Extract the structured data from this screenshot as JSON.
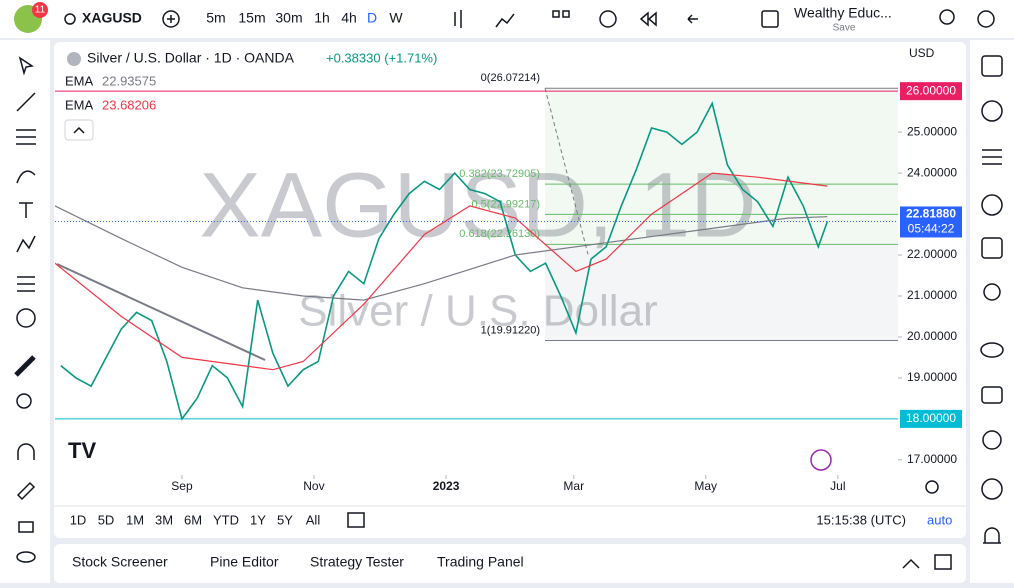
{
  "toolbar": {
    "badge": "11",
    "symbol": "XAGUSD",
    "intervals": [
      "5m",
      "15m",
      "30m",
      "1h",
      "4h",
      "D",
      "W"
    ],
    "active_interval": "D",
    "layout_name": "Wealthy Educ...",
    "save": "Save"
  },
  "legend": {
    "title": "Silver / U.S. Dollar · 1D · OANDA",
    "change": "+0.38330 (+1.71%)",
    "indicators": [
      {
        "name": "EMA",
        "value": 22.93575,
        "color": "#787b86"
      },
      {
        "name": "EMA",
        "value": 23.68206,
        "color": "#f23645"
      }
    ]
  },
  "watermark": {
    "symbol": "XAGUSD, 1D",
    "description": "Silver / U.S. Dollar"
  },
  "chart_data": {
    "type": "line",
    "currency": "USD",
    "xlim": [
      -8.38,
      47.26
    ],
    "xticks": [
      {
        "value": 0,
        "label": "Sep"
      },
      {
        "value": 8.71,
        "label": "Nov"
      },
      {
        "value": 17.43,
        "label": "2023"
      },
      {
        "value": 25.86,
        "label": "Mar"
      },
      {
        "value": 34.57,
        "label": "May"
      },
      {
        "value": 43.29,
        "label": "Jul"
      }
    ],
    "ylim": [
      16.63,
      27.2
    ],
    "yticks": [
      {
        "value": 17,
        "label": "17.00000"
      },
      {
        "value": 19,
        "label": "19.00000"
      },
      {
        "value": 20,
        "label": "20.00000"
      },
      {
        "value": 21,
        "label": "21.00000"
      },
      {
        "value": 22,
        "label": "22.00000"
      },
      {
        "value": 24,
        "label": "24.00000"
      },
      {
        "value": 25,
        "label": "25.00000"
      }
    ],
    "series": [
      {
        "name": "XAGUSD",
        "color": "#089981",
        "x": [
          -8,
          -7,
          -6,
          -5,
          -4,
          -3,
          -2,
          -1,
          0,
          1,
          2,
          3,
          4,
          5,
          6,
          7,
          8,
          9,
          10,
          11,
          12,
          13,
          14,
          15,
          16,
          17,
          18,
          19,
          20,
          21,
          22,
          23,
          24,
          25,
          26,
          27,
          28,
          29,
          30,
          31,
          32,
          33,
          34,
          35,
          36,
          37,
          38,
          39,
          40,
          41,
          42,
          42.6
        ],
        "values": [
          19.3,
          19.0,
          18.8,
          19.5,
          20.2,
          20.6,
          20.4,
          19.4,
          18.0,
          18.5,
          19.3,
          19.0,
          18.3,
          20.9,
          19.6,
          18.8,
          19.2,
          19.4,
          21.0,
          21.6,
          21.3,
          22.4,
          23.0,
          23.5,
          23.8,
          23.6,
          24.0,
          23.6,
          23.5,
          23.3,
          22.0,
          21.6,
          21.8,
          21.0,
          20.1,
          21.9,
          22.2,
          23.2,
          24.1,
          25.1,
          25.0,
          24.7,
          25.0,
          25.7,
          24.2,
          23.6,
          23.3,
          22.7,
          23.9,
          23.2,
          22.2,
          22.8188
        ]
      },
      {
        "name": "EMA",
        "color": "#787b86",
        "x": [
          -8.38,
          -4,
          0,
          4,
          8,
          12,
          16,
          22,
          28,
          34,
          40,
          42.6
        ],
        "values": [
          23.2,
          22.4,
          21.7,
          21.2,
          21.0,
          20.9,
          21.3,
          22.0,
          22.3,
          22.6,
          22.9,
          22.93575
        ]
      },
      {
        "name": "EMA",
        "color": "#f23645",
        "x": [
          -8.38,
          -4,
          0,
          6,
          8,
          12,
          16,
          19,
          22,
          26,
          28,
          31,
          35,
          38,
          42.6
        ],
        "values": [
          21.8,
          20.5,
          19.5,
          19.2,
          19.4,
          20.8,
          22.5,
          23.2,
          22.9,
          21.6,
          21.9,
          23.0,
          24.0,
          23.9,
          23.68206
        ]
      }
    ],
    "hlines": [
      {
        "value": 26,
        "label": "26.00000",
        "color": "#e91e63"
      },
      {
        "value": 18,
        "label": "18.00000",
        "color": "#00bcd4"
      }
    ],
    "last_price": {
      "value": 22.8188,
      "label": "22.81880",
      "countdown": "05:44:22",
      "color": "#2962ff"
    },
    "fib": {
      "color": "#66bb6a",
      "levels": [
        {
          "value": 26.07214,
          "label": "0(26.07214)"
        },
        {
          "value": 23.72905,
          "label": "0.382(23.72905)"
        },
        {
          "value": 22.99217,
          "label": "0.5(22.99217)"
        },
        {
          "value": 22.2613,
          "label": "0.618(22.26130)"
        },
        {
          "value": 19.9122,
          "label": "1(19.91220)"
        }
      ]
    }
  },
  "range_bar": {
    "ranges": [
      "1D",
      "5D",
      "1M",
      "3M",
      "6M",
      "YTD",
      "1Y",
      "5Y",
      "All"
    ],
    "clock": "15:15:38 (UTC)",
    "scale": "auto"
  },
  "bottom_panel": {
    "tabs": [
      "Stock Screener",
      "Pine Editor",
      "Strategy Tester",
      "Trading Panel"
    ]
  }
}
